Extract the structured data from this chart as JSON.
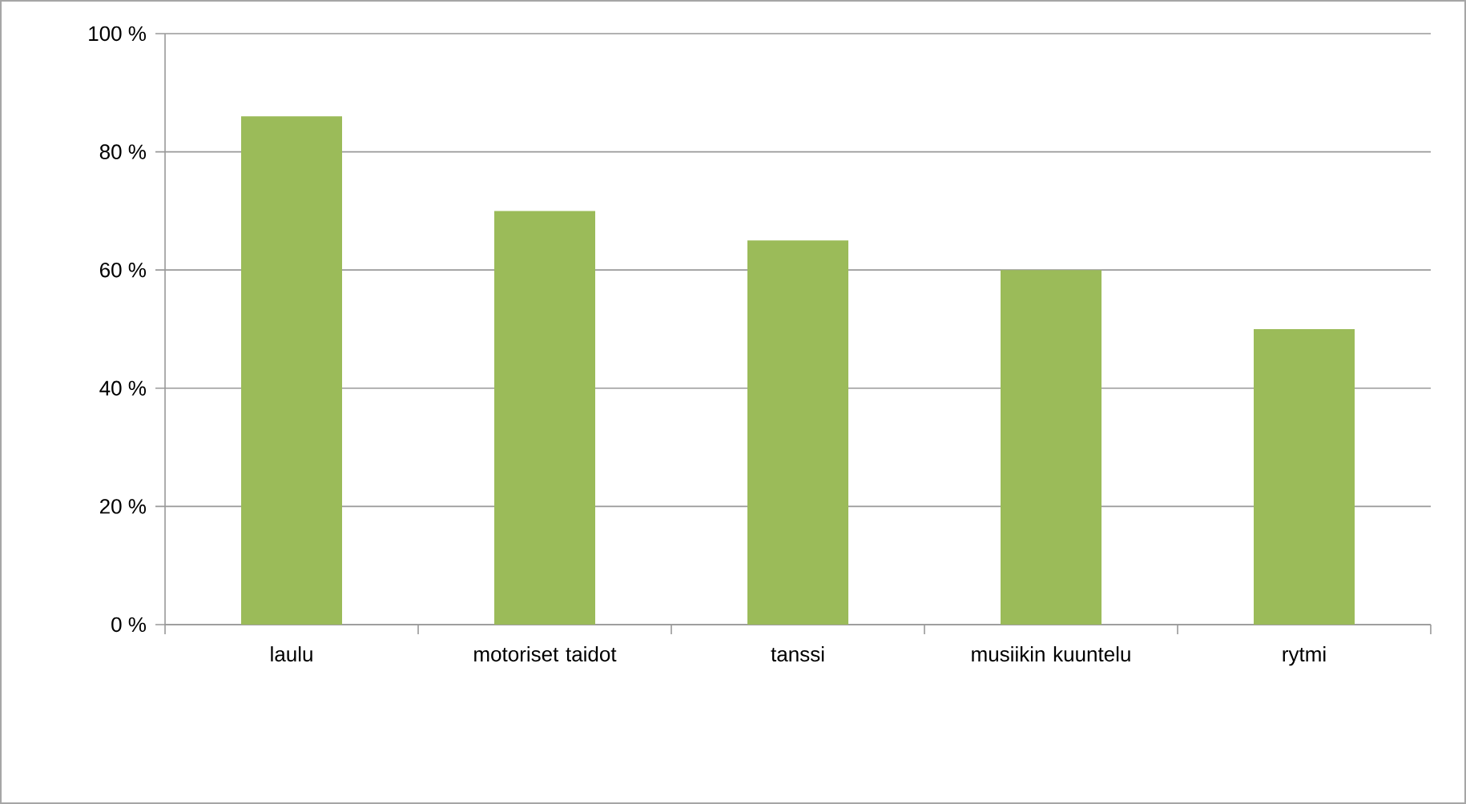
{
  "chart_data": {
    "type": "bar",
    "categories": [
      "laulu",
      "motoriset taidot",
      "tanssi",
      "musiikin kuuntelu",
      "rytmi"
    ],
    "values": [
      86,
      70,
      65,
      60,
      50
    ],
    "color": "#9bbb59",
    "ylim": [
      0,
      100
    ],
    "yticks": [
      {
        "value": 0,
        "label": "0 %"
      },
      {
        "value": 20,
        "label": "20 %"
      },
      {
        "value": 40,
        "label": "40 %"
      },
      {
        "value": 60,
        "label": "60 %"
      },
      {
        "value": 80,
        "label": "80 %"
      },
      {
        "value": 100,
        "label": "100 %"
      }
    ],
    "grid": "y"
  }
}
